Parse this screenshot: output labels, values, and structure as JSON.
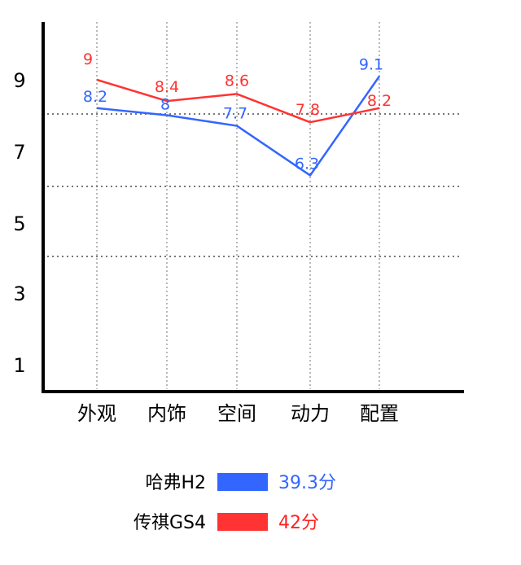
{
  "chart_data": {
    "type": "line",
    "title": "",
    "xlabel": "",
    "ylabel": "",
    "categories": [
      "外观",
      "内饰",
      "空间",
      "动力",
      "配置"
    ],
    "y_ticks": [
      "1",
      "3",
      "5",
      "7",
      "9"
    ],
    "grid": "horizontal dotted + vertical dotted",
    "legend_position": "bottom-center",
    "series": [
      {
        "name": "哈弗H2",
        "color": "#3366ff",
        "values": [
          8.2,
          8,
          7.7,
          6.3,
          9.1
        ],
        "score": "39.3分"
      },
      {
        "name": "传祺GS4",
        "color": "#ff3333",
        "values": [
          9,
          8.4,
          8.6,
          7.8,
          8.2
        ],
        "score": "42分"
      }
    ]
  }
}
